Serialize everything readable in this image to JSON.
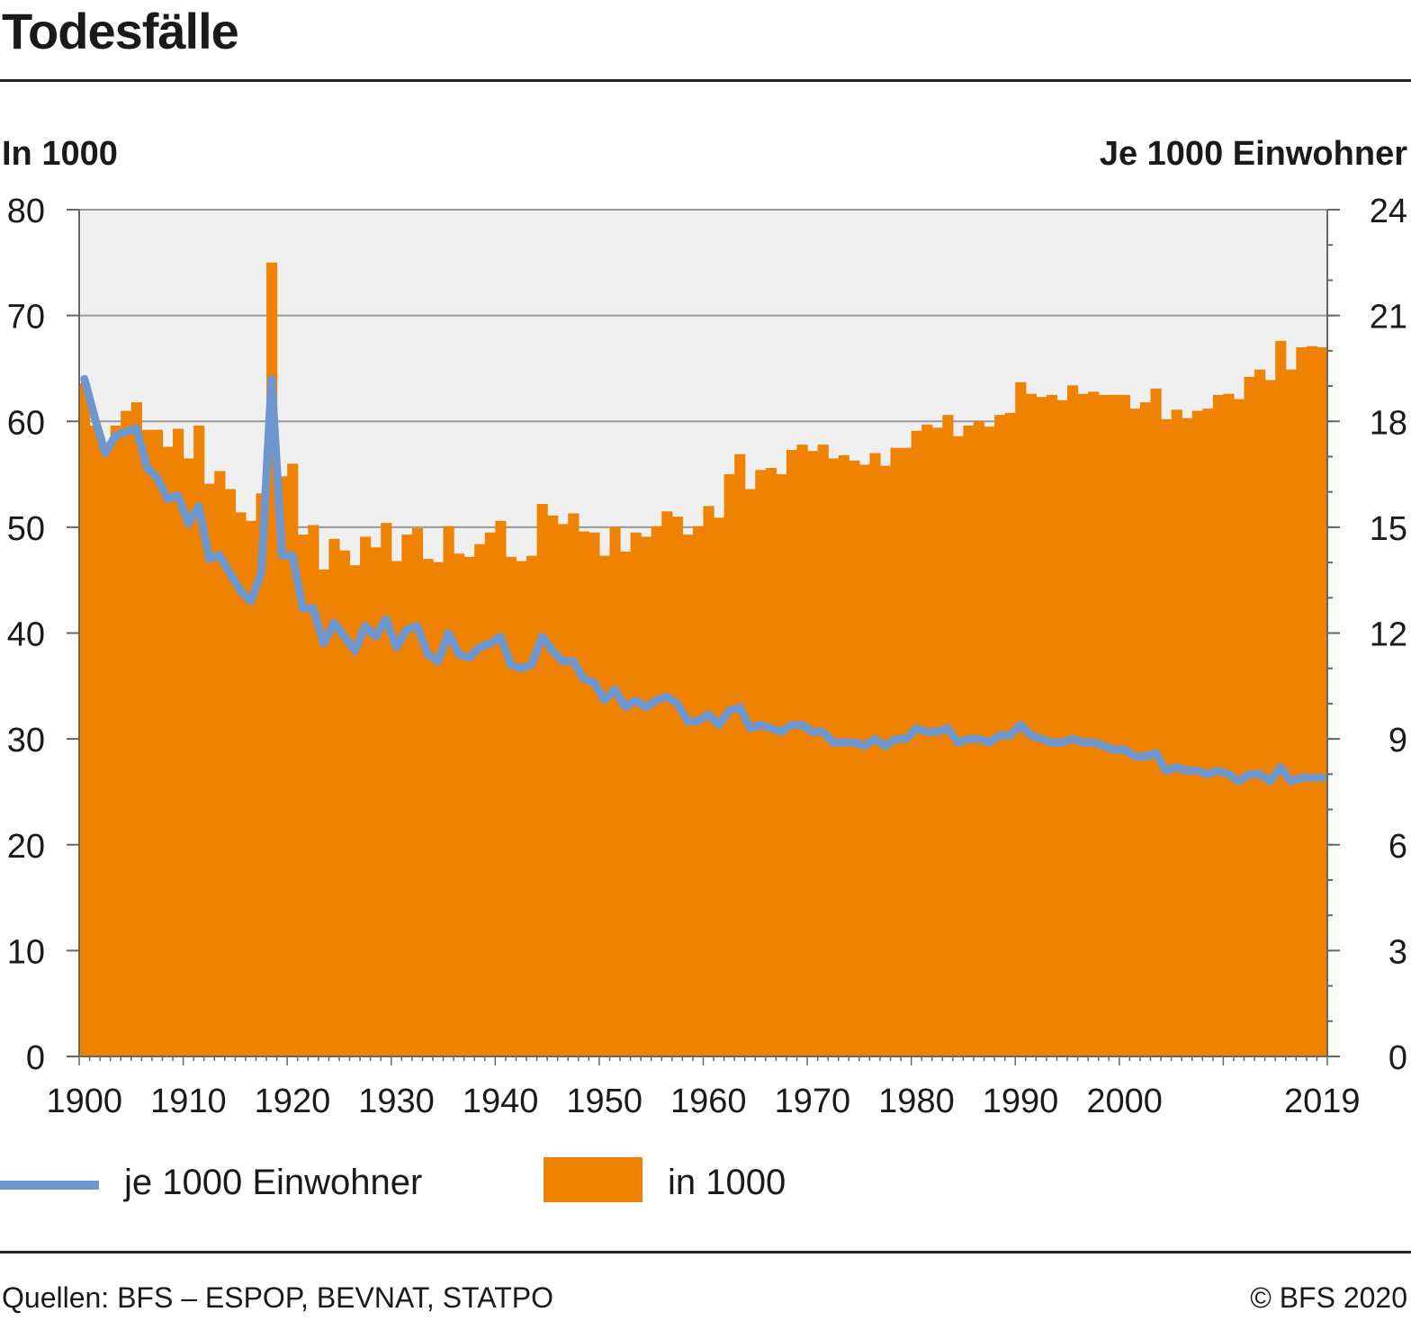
{
  "header": {
    "title": "Todesfälle"
  },
  "axes": {
    "left_unit": "In 1000",
    "right_unit": "Je 1000 Einwohner"
  },
  "legend": {
    "line_label": "je 1000 Einwohner",
    "bar_label": "in 1000"
  },
  "footer": {
    "source": "Quellen: BFS – ESPOP, BEVNAT, STATPO",
    "copyright": "© BFS 2020"
  },
  "colors": {
    "bars": "#ef8200",
    "line": "#6f97cf",
    "plot_background": "#efefef",
    "grid": "#999999"
  },
  "chart_data": {
    "type": "bar",
    "combined_with": "line",
    "grid": true,
    "legend_position": "bottom",
    "x": [
      1900,
      1901,
      1902,
      1903,
      1904,
      1905,
      1906,
      1907,
      1908,
      1909,
      1910,
      1911,
      1912,
      1913,
      1914,
      1915,
      1916,
      1917,
      1918,
      1919,
      1920,
      1921,
      1922,
      1923,
      1924,
      1925,
      1926,
      1927,
      1928,
      1929,
      1930,
      1931,
      1932,
      1933,
      1934,
      1935,
      1936,
      1937,
      1938,
      1939,
      1940,
      1941,
      1942,
      1943,
      1944,
      1945,
      1946,
      1947,
      1948,
      1949,
      1950,
      1951,
      1952,
      1953,
      1954,
      1955,
      1956,
      1957,
      1958,
      1959,
      1960,
      1961,
      1962,
      1963,
      1964,
      1965,
      1966,
      1967,
      1968,
      1969,
      1970,
      1971,
      1972,
      1973,
      1974,
      1975,
      1976,
      1977,
      1978,
      1979,
      1980,
      1981,
      1982,
      1983,
      1984,
      1985,
      1986,
      1987,
      1988,
      1989,
      1990,
      1991,
      1992,
      1993,
      1994,
      1995,
      1996,
      1997,
      1998,
      1999,
      2000,
      2001,
      2002,
      2003,
      2004,
      2005,
      2006,
      2007,
      2008,
      2009,
      2010,
      2011,
      2012,
      2013,
      2014,
      2015,
      2016,
      2017,
      2018,
      2019
    ],
    "x_ticks": [
      "1900",
      "1910",
      "1920",
      "1930",
      "1940",
      "1950",
      "1960",
      "1970",
      "1980",
      "1990",
      "2000",
      "2019"
    ],
    "x_tick_years": [
      1900,
      1910,
      1920,
      1930,
      1940,
      1950,
      1960,
      1970,
      1980,
      1990,
      2000,
      2019
    ],
    "series": [
      {
        "name": "in 1000",
        "type": "bar",
        "axis": "left",
        "ylim": [
          0,
          80
        ],
        "yticks": [
          "0",
          "10",
          "20",
          "30",
          "40",
          "50",
          "60",
          "70",
          "80"
        ],
        "values": [
          63.6,
          59.6,
          57.4,
          59.6,
          61.0,
          61.8,
          59.2,
          59.2,
          57.6,
          59.3,
          56.5,
          59.6,
          54.1,
          55.3,
          53.6,
          51.4,
          50.6,
          53.2,
          75.0,
          54.8,
          56.0,
          49.3,
          50.2,
          46.0,
          48.9,
          47.8,
          46.4,
          49.1,
          48.1,
          50.4,
          46.8,
          49.3,
          49.9,
          47.0,
          46.7,
          50.1,
          47.5,
          47.2,
          48.4,
          49.5,
          50.6,
          47.2,
          46.8,
          47.3,
          52.2,
          51.1,
          50.3,
          51.3,
          49.6,
          49.5,
          47.3,
          50.0,
          47.7,
          49.5,
          49.1,
          50.1,
          51.5,
          51.0,
          49.3,
          50.1,
          52.0,
          50.9,
          55.0,
          56.9,
          53.6,
          55.4,
          55.6,
          55.0,
          57.3,
          57.8,
          57.2,
          57.8,
          56.5,
          56.8,
          56.3,
          55.9,
          57.0,
          55.8,
          57.5,
          57.5,
          59.1,
          59.7,
          59.4,
          60.6,
          58.6,
          59.6,
          60.0,
          59.5,
          60.6,
          60.8,
          63.7,
          62.6,
          62.3,
          62.5,
          62.0,
          63.4,
          62.6,
          62.8,
          62.5,
          62.5,
          62.5,
          61.2,
          61.8,
          63.1,
          60.2,
          61.1,
          60.3,
          61.0,
          61.2,
          62.5,
          62.6,
          62.1,
          64.2,
          64.9,
          63.9,
          67.6,
          64.9,
          67.0,
          67.1,
          67.0
        ]
      },
      {
        "name": "je 1000 Einwohner",
        "type": "line",
        "axis": "right",
        "ylim": [
          0,
          24
        ],
        "yticks": [
          "0",
          "3",
          "6",
          "9",
          "12",
          "15",
          "18",
          "21",
          "24"
        ],
        "values": [
          19.2,
          18.1,
          17.1,
          17.6,
          17.7,
          17.8,
          16.7,
          16.4,
          15.8,
          15.9,
          15.1,
          15.6,
          14.1,
          14.2,
          13.7,
          13.2,
          12.9,
          13.7,
          19.2,
          14.2,
          14.2,
          12.7,
          12.7,
          11.7,
          12.3,
          11.9,
          11.5,
          12.2,
          11.9,
          12.4,
          11.6,
          12.1,
          12.2,
          11.4,
          11.2,
          12.0,
          11.4,
          11.3,
          11.6,
          11.7,
          11.9,
          11.1,
          11.0,
          11.1,
          11.9,
          11.5,
          11.2,
          11.2,
          10.7,
          10.6,
          10.1,
          10.4,
          9.9,
          10.1,
          9.9,
          10.1,
          10.2,
          10.0,
          9.5,
          9.5,
          9.7,
          9.4,
          9.8,
          9.9,
          9.3,
          9.4,
          9.3,
          9.2,
          9.4,
          9.4,
          9.2,
          9.2,
          8.9,
          8.9,
          8.9,
          8.8,
          9.0,
          8.8,
          9.0,
          9.0,
          9.3,
          9.2,
          9.2,
          9.3,
          8.9,
          9.0,
          9.0,
          8.9,
          9.1,
          9.1,
          9.4,
          9.1,
          9.0,
          8.9,
          8.9,
          9.0,
          8.9,
          8.9,
          8.8,
          8.7,
          8.7,
          8.5,
          8.5,
          8.6,
          8.1,
          8.2,
          8.1,
          8.1,
          8.0,
          8.1,
          8.0,
          7.8,
          8.0,
          8.0,
          7.8,
          8.2,
          7.8,
          7.9,
          7.9,
          7.9
        ]
      }
    ]
  }
}
